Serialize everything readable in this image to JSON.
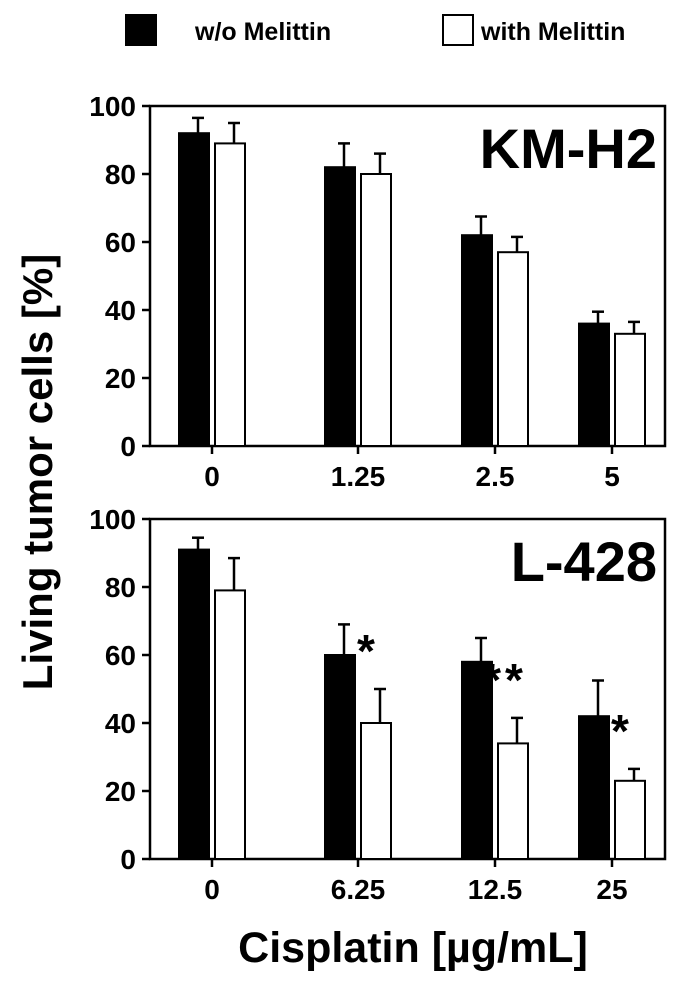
{
  "legend": [
    {
      "label": "w/o Melittin",
      "fill": "#000000"
    },
    {
      "label": "with Melittin",
      "fill": "#ffffff"
    }
  ],
  "ylabel": "Living tumor cells [%]",
  "xlabel": "Cisplatin [µg/mL]",
  "colors": {
    "series_0": "#000000",
    "series_1": "#ffffff",
    "axis": "#000000"
  },
  "chart_data": [
    {
      "type": "bar",
      "panel_label": "KM-H2",
      "categories": [
        "0",
        "1.25",
        "2.5",
        "5"
      ],
      "series": [
        {
          "name": "w/o Melittin",
          "values": [
            92,
            82,
            62,
            36
          ],
          "errors": [
            4.5,
            7,
            5.5,
            3.5
          ]
        },
        {
          "name": "with Melittin",
          "values": [
            89,
            80,
            57,
            33
          ],
          "errors": [
            6,
            6,
            4.5,
            3.5
          ]
        }
      ],
      "significance": [
        "",
        "",
        "",
        ""
      ],
      "ylim": [
        0,
        100
      ],
      "yticks": [
        0,
        20,
        40,
        60,
        80,
        100
      ],
      "xlabel": "",
      "ylabel": "Living tumor cells [%]"
    },
    {
      "type": "bar",
      "panel_label": "L-428",
      "categories": [
        "0",
        "6.25",
        "12.5",
        "25"
      ],
      "series": [
        {
          "name": "w/o Melittin",
          "values": [
            91,
            60,
            58,
            42
          ],
          "errors": [
            3.5,
            9,
            7,
            10.5
          ]
        },
        {
          "name": "with Melittin",
          "values": [
            79,
            40,
            34,
            23
          ],
          "errors": [
            9.5,
            10,
            7.5,
            3.5
          ]
        }
      ],
      "significance": [
        "",
        "*",
        "**",
        "*"
      ],
      "ylim": [
        0,
        100
      ],
      "yticks": [
        0,
        20,
        40,
        60,
        80,
        100
      ],
      "xlabel": "Cisplatin [µg/mL]",
      "ylabel": "Living tumor cells [%]"
    }
  ]
}
